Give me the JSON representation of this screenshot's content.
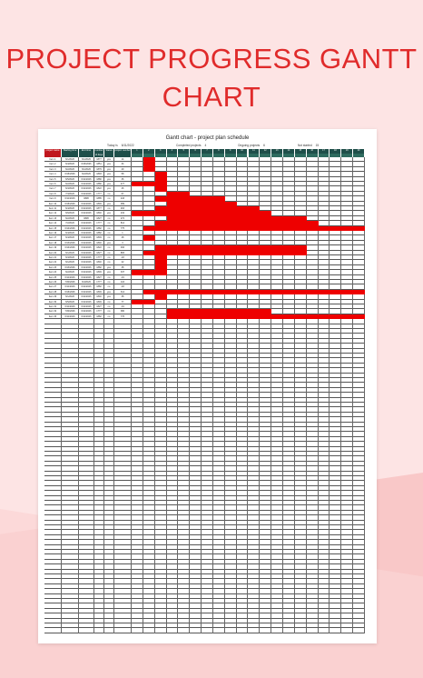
{
  "hero": {
    "title_line1": "PROJECT PROGRESS GANTT",
    "title_line2": "CHART"
  },
  "sheet": {
    "title": "Gantt chart - project plan schedule",
    "today_label": "Today is",
    "today_value": "6/11/2022",
    "completed_label": "Completed projects",
    "completed_value": "4",
    "ongoing_label": "Ongoing projects",
    "ongoing_value": "6",
    "notstarted_label": "Not started",
    "notstarted_value": "15",
    "columns": [
      "project name",
      "Starting time",
      "End time",
      "number of days",
      "Status",
      "project number"
    ],
    "day_numbers": [
      "1",
      "2",
      "3",
      "4",
      "5",
      "6",
      "7",
      "8",
      "9",
      "10",
      "11",
      "12",
      "13",
      "14",
      "15",
      "16",
      "17",
      "18",
      "19",
      "20"
    ],
    "rows": [
      {
        "name": "Item 1",
        "start": "6/1/2026",
        "end": "6/1/2026",
        "days": "1877",
        "status": "yes",
        "num": "14",
        "bar": [
          1,
          1
        ]
      },
      {
        "name": "Item 2",
        "start": "6/4/2026",
        "end": "6/16/2026",
        "days": "1851",
        "status": "yes",
        "num": "34",
        "bar": [
          1,
          1
        ]
      },
      {
        "name": "Item 3",
        "start": "6/2/2026",
        "end": "6/1/2026",
        "days": "1879",
        "status": "yes",
        "num": "29",
        "bar": [
          1,
          1
        ]
      },
      {
        "name": "Item 4",
        "start": "6/16/2026",
        "end": "6/2/2026",
        "days": "1893",
        "status": "yes",
        "num": "58",
        "bar": [
          2,
          1
        ]
      },
      {
        "name": "Item 5",
        "start": "6/5/2026",
        "end": "6/11/2026",
        "days": "1880",
        "status": "yes",
        "num": "36",
        "bar": [
          2,
          1
        ]
      },
      {
        "name": "Item 6",
        "start": "6/2/2026",
        "end": "6/11/2026",
        "days": "1880",
        "status": "yes",
        "num": "477",
        "bar": [
          0,
          3
        ]
      },
      {
        "name": "Item 7",
        "start": "6/3/2026",
        "end": "6/11/2026",
        "days": "1822",
        "status": "yes",
        "num": "26",
        "bar": [
          2,
          1
        ]
      },
      {
        "name": "Item 8",
        "start": "7/3/2026",
        "end": "6/11/2026",
        "days": "1777",
        "status": "no",
        "num": "67",
        "bar": [
          3,
          2
        ]
      },
      {
        "name": "Item 9",
        "start": "6/11/2026",
        "end": "####",
        "days": "1885",
        "status": "no",
        "num": "243",
        "bar": [
          2,
          6
        ]
      },
      {
        "name": "Item 10",
        "start": "6/16/2026",
        "end": "6/11/2026",
        "days": "1849",
        "status": "yes",
        "num": "389",
        "bar": [
          3,
          6
        ]
      },
      {
        "name": "Item 11",
        "start": "6/4/2026",
        "end": "6/11/2026",
        "days": "1877",
        "status": "no",
        "num": "263",
        "bar": [
          2,
          9
        ]
      },
      {
        "name": "Item 12",
        "start": "6/6/2026",
        "end": "6/11/2026",
        "days": "1840",
        "status": "yes",
        "num": "234",
        "bar": [
          0,
          12
        ]
      },
      {
        "name": "Item 13",
        "start": "6/2/2026",
        "end": "####",
        "days": "1827",
        "status": "no",
        "num": "272",
        "bar": [
          3,
          12
        ]
      },
      {
        "name": "Item 14",
        "start": "7/2/2026",
        "end": "6/11/2026",
        "days": "1777",
        "status": "no",
        "num": "814",
        "bar": [
          2,
          14
        ]
      },
      {
        "name": "Item 15",
        "start": "6/14/2026",
        "end": "6/11/2026",
        "days": "1882",
        "status": "no",
        "num": "775",
        "bar": [
          1,
          19
        ]
      },
      {
        "name": "Item 16",
        "start": "6/4/2026",
        "end": "6/11/2026",
        "days": "1882",
        "status": "no",
        "num": "1",
        "bar": null
      },
      {
        "name": "Item 17",
        "start": "6/4/2026",
        "end": "6/11/2026",
        "days": "1849",
        "status": "no",
        "num": "48",
        "bar": [
          1,
          1
        ]
      },
      {
        "name": "Item 18",
        "start": "6/13/2026",
        "end": "6/11/2026",
        "days": "1840",
        "status": "yes",
        "num": "3",
        "bar": null
      },
      {
        "name": "Item 19",
        "start": "6/14/2026",
        "end": "6/11/2026",
        "days": "1822",
        "status": "no",
        "num": "466",
        "bar": [
          2,
          13
        ]
      },
      {
        "name": "Item 20",
        "start": "6/1/2026",
        "end": "6/11/2026",
        "days": "1827",
        "status": "no",
        "num": "883",
        "bar": [
          1,
          14
        ]
      },
      {
        "name": "Item 21",
        "start": "6/3/2026",
        "end": "6/11/2026",
        "days": "1777",
        "status": "no",
        "num": "-18",
        "bar": [
          2,
          1
        ]
      },
      {
        "name": "Item 22",
        "start": "6/1/2026",
        "end": "6/11/2026",
        "days": "1840",
        "status": "no",
        "num": "22",
        "bar": [
          2,
          1
        ]
      },
      {
        "name": "Item 23",
        "start": "6/13/2026",
        "end": "6/11/2026",
        "days": "1882",
        "status": "yes",
        "num": "38",
        "bar": [
          2,
          1
        ]
      },
      {
        "name": "Item 24",
        "start": "6/2/2026",
        "end": "6/11/2026",
        "days": "1849",
        "status": "yes",
        "num": "337",
        "bar": [
          0,
          3
        ]
      },
      {
        "name": "Item 25",
        "start": "6/11/2026",
        "end": "6/11/2026",
        "days": "1827",
        "status": "no",
        "num": "-19",
        "bar": null
      },
      {
        "name": "Item 26",
        "start": "7/30/2026",
        "end": "6/4/2026",
        "days": "1777",
        "status": "no",
        "num": "116",
        "bar": null
      },
      {
        "name": "Item 27",
        "start": "6/11/2026",
        "end": "6/11/2026",
        "days": "1882",
        "status": "no",
        "num": "-18",
        "bar": null
      },
      {
        "name": "Item 28",
        "start": "6/16/2026",
        "end": "6/11/2026",
        "days": "1849",
        "status": "yes",
        "num": "314",
        "bar": [
          1,
          19
        ]
      },
      {
        "name": "Item 29",
        "start": "6/1/2026",
        "end": "6/11/2026",
        "days": "1840",
        "status": "yes",
        "num": "38",
        "bar": [
          2,
          1
        ]
      },
      {
        "name": "Item 30",
        "start": "6/5/2026",
        "end": "6/11/2026",
        "days": "1849",
        "status": "no",
        "num": "77",
        "bar": [
          0,
          2
        ]
      },
      {
        "name": "Item 31",
        "start": "6/11/2026",
        "end": "6/11/2026",
        "days": "1827",
        "status": "no",
        "num": "-19",
        "bar": null
      },
      {
        "name": "Item 32",
        "start": "7/30/2026",
        "end": "6/11/2026",
        "days": "1777",
        "status": "no",
        "num": "380",
        "bar": [
          3,
          9
        ]
      },
      {
        "name": "Item 33",
        "start": "6/11/2026",
        "end": "6/11/2026",
        "days": "1882",
        "status": "no",
        "num": "776",
        "bar": [
          3,
          17
        ]
      }
    ],
    "empty_rows": 64
  }
}
